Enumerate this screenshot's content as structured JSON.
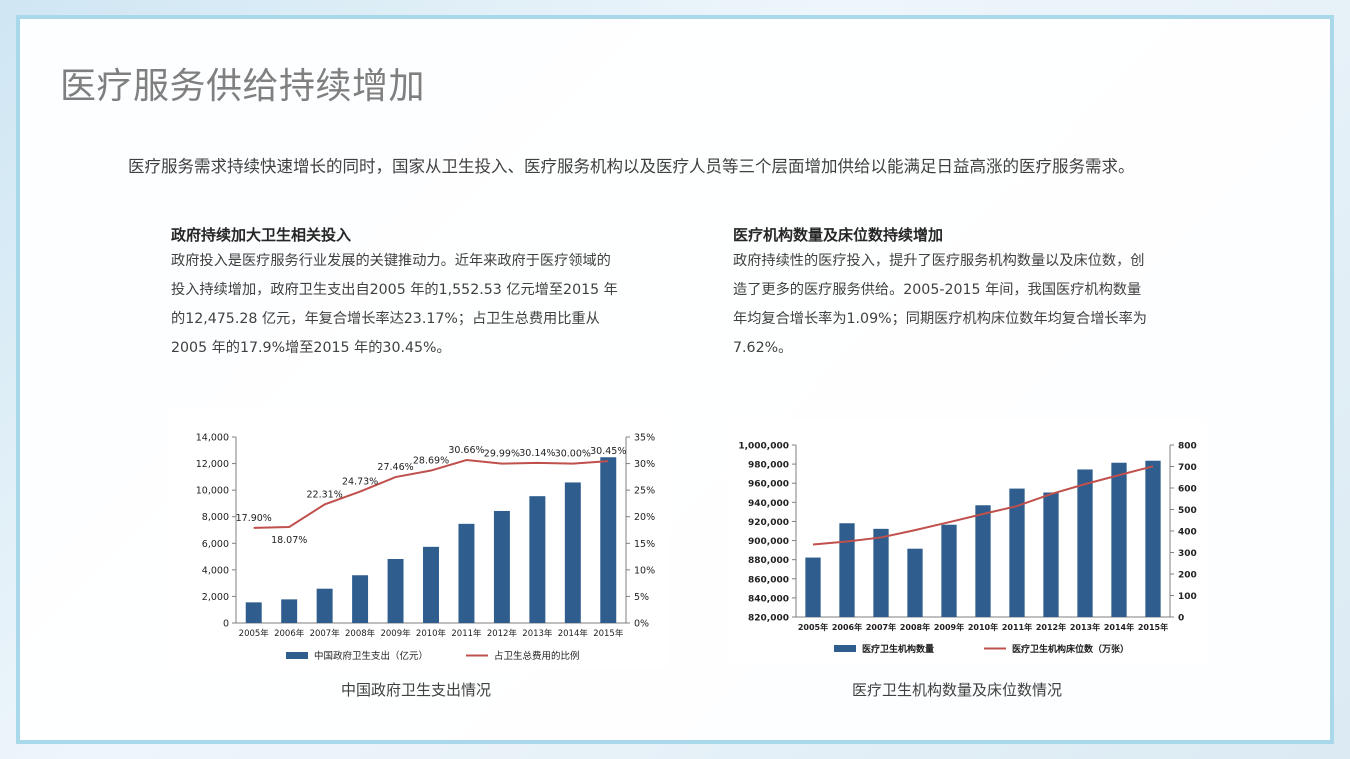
{
  "title": "医疗服务供给持续增加",
  "intro": "医疗服务需求持续快速增长的同时，国家从卫生投入、医疗服务机构以及医疗人员等三个层面增加供给以能满足日益高涨的医疗服务需求。",
  "left": {
    "heading": "政府持续加大卫生相关投入",
    "body": [
      "政府投入是医疗服务行业发展的关键推动力。近年来政府于医疗领域的",
      "投入持续增加，政府卫生支出自2005 年的1,552.53 亿元增至2015 年",
      "的12,475.28 亿元，年复合增长率达23.17%；占卫生总费用比重从",
      "2005 年的17.9%增至2015 年的30.45%。"
    ],
    "caption": "中国政府卫生支出情况"
  },
  "right": {
    "heading": "医疗机构数量及床位数持续增加",
    "body": [
      "政府持续性的医疗投入，提升了医疗服务机构数量以及床位数，创",
      "造了更多的医疗服务供给。2005-2015 年间，我国医疗机构数量",
      "年均复合增长率为1.09%；同期医疗机构床位数年均复合增长率为",
      "7.62%。"
    ],
    "caption": "医疗卫生机构数量及床位数情况"
  },
  "chart_data": [
    {
      "type": "bar",
      "categories": [
        "2005年",
        "2006年",
        "2007年",
        "2008年",
        "2009年",
        "2010年",
        "2011年",
        "2012年",
        "2013年",
        "2014年",
        "2015年"
      ],
      "series": [
        {
          "name": "中国政府卫生支出（亿元）",
          "type": "bar",
          "axis": "left",
          "values": [
            1553,
            1779,
            2582,
            3594,
            4817,
            5733,
            7464,
            8432,
            9546,
            10579,
            12475
          ]
        },
        {
          "name": "占卫生总费用的比例",
          "type": "line",
          "axis": "right",
          "values": [
            17.9,
            18.07,
            22.31,
            24.73,
            27.46,
            28.69,
            30.66,
            29.99,
            30.14,
            30.0,
            30.45
          ],
          "labels": [
            "17.90%",
            "18.07%",
            "22.31%",
            "24.73%",
            "27.46%",
            "28.69%",
            "30.66%",
            "29.99%",
            "30.14%",
            "30.00%",
            "30.45%"
          ]
        }
      ],
      "ylim": [
        0,
        14000
      ],
      "yticks": [
        "0",
        "2,000",
        "4,000",
        "6,000",
        "8,000",
        "10,000",
        "12,000",
        "14,000"
      ],
      "y2lim": [
        0,
        35
      ],
      "y2ticks": [
        "0%",
        "5%",
        "10%",
        "15%",
        "20%",
        "25%",
        "30%",
        "35%"
      ],
      "legend": "bottom",
      "bar_color": "#2e5d8e",
      "line_color": "#c0504d"
    },
    {
      "type": "bar",
      "categories": [
        "2005年",
        "2006年",
        "2007年",
        "2008年",
        "2009年",
        "2010年",
        "2011年",
        "2012年",
        "2013年",
        "2014年",
        "2015年"
      ],
      "series": [
        {
          "name": "医疗卫生机构数量",
          "type": "bar",
          "axis": "left",
          "values": [
            882206,
            918097,
            912263,
            891480,
            916571,
            936927,
            954389,
            950297,
            974398,
            981432,
            983528
          ]
        },
        {
          "name": "医疗卫生机构床位数（万张）",
          "type": "line",
          "axis": "right",
          "values": [
            337,
            351,
            370,
            404,
            441,
            479,
            516,
            572,
            618,
            660,
            701
          ]
        }
      ],
      "ylim": [
        820000,
        1000000
      ],
      "yticks": [
        "820,000",
        "840,000",
        "860,000",
        "880,000",
        "900,000",
        "920,000",
        "940,000",
        "960,000",
        "980,000",
        "1,000,000"
      ],
      "y2lim": [
        0,
        800
      ],
      "y2ticks": [
        "0",
        "100",
        "200",
        "300",
        "400",
        "500",
        "600",
        "700",
        "800"
      ],
      "legend": "bottom",
      "bar_color": "#2e5d8e",
      "line_color": "#c0504d"
    }
  ]
}
